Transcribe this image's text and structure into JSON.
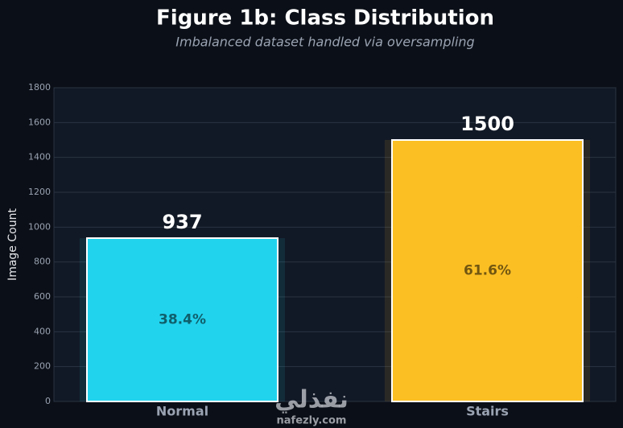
{
  "chart_data": {
    "type": "bar",
    "title": "Figure 1b: Class Distribution",
    "subtitle": "Imbalanced dataset handled via oversampling",
    "y_label": "Image Count",
    "categories": [
      "Normal",
      "Stairs"
    ],
    "values": [
      937,
      1500
    ],
    "colors": [
      "#22d3ee",
      "#fbbf24"
    ],
    "percentages": {
      "values": [
        38.4,
        61.6
      ],
      "value_labels": [
        "38.4%",
        "61.6%"
      ]
    },
    "ylim": [
      0,
      1800
    ],
    "yticks": [
      0,
      200,
      400,
      600,
      800,
      1000,
      1200,
      1400,
      1600,
      1800
    ],
    "grid": true
  },
  "watermark": {
    "name": "نفذلي",
    "url": "nafezly.com"
  }
}
